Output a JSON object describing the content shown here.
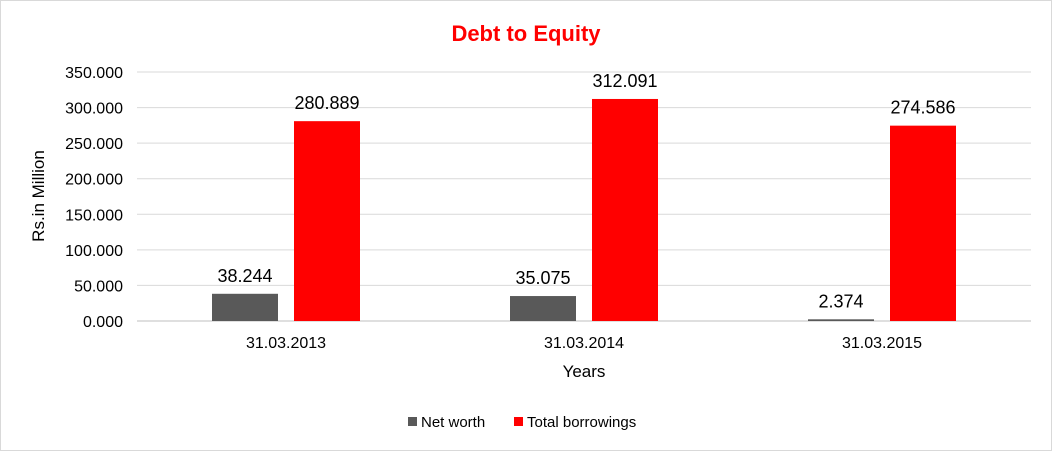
{
  "chart_data": {
    "type": "bar",
    "title": "Debt to Equity",
    "xlabel": "Years",
    "ylabel": "Rs.in Million",
    "categories": [
      "31.03.2013",
      "31.03.2014",
      "31.03.2015"
    ],
    "series": [
      {
        "name": "Net worth",
        "values": [
          38.244,
          35.075,
          2.374
        ],
        "labels": [
          "38.244",
          "35.075",
          "2.374"
        ],
        "color": "#595959"
      },
      {
        "name": "Total borrowings",
        "values": [
          280.889,
          312.091,
          274.586
        ],
        "labels": [
          "280.889",
          "312.091",
          "274.586"
        ],
        "color": "#ff0000"
      }
    ],
    "yticks": [
      "0.000",
      "50.000",
      "100.000",
      "150.000",
      "200.000",
      "250.000",
      "300.000",
      "350.000"
    ],
    "ylim": [
      0,
      350
    ],
    "grid": true,
    "legend_position": "bottom",
    "title_color": "#ff0000"
  }
}
